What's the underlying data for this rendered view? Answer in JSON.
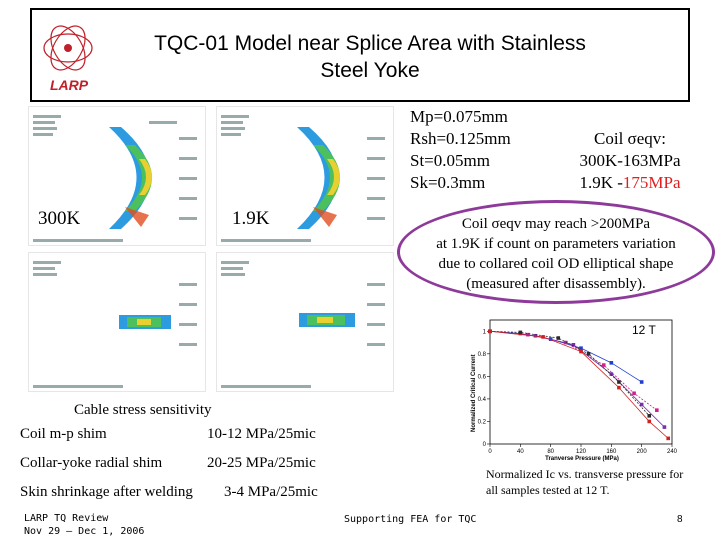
{
  "title": {
    "line1": "TQC-01 Model near Splice Area with Stainless",
    "line2": "Steel Yoke"
  },
  "logo": {
    "text": "LARP"
  },
  "fea_panels": {
    "label_300k": "300K",
    "label_19k": "1.9K"
  },
  "params": {
    "mp": "Mp=0.075mm",
    "rsh": "Rsh=0.125mm",
    "st": "St=0.05mm",
    "sk": "Sk=0.3mm"
  },
  "coil_stats": {
    "line1": "Coil σeqv:",
    "line2": "300K-163MPa",
    "line3_prefix": "1.9K -",
    "line3_value": "175MPa"
  },
  "callout": {
    "line1": "Coil σeqv may reach >200MPa",
    "line2": "at 1.9K if count on parameters variation",
    "line3": "due to collared coil OD elliptical shape",
    "line4": "(measured after disassembly)."
  },
  "plot": {
    "field_label": "12 T",
    "caption": "Normalized Ic vs. transverse pressure for all samples tested at 12 T."
  },
  "chart_data": {
    "type": "scatter",
    "xlabel": "Tranverse Pressure (MPa)",
    "ylabel": "Normalized Critical Current",
    "x_ticks": [
      0,
      40,
      80,
      120,
      160,
      200,
      240
    ],
    "y_ticks": [
      0,
      0.2,
      0.4,
      0.6,
      0.8,
      1
    ],
    "xlim": [
      0,
      240
    ],
    "ylim": [
      0,
      1.1
    ],
    "series": [
      {
        "color": "#1f3fd0",
        "points": [
          [
            0,
            1.0
          ],
          [
            40,
            0.98
          ],
          [
            80,
            0.93
          ],
          [
            120,
            0.85
          ],
          [
            160,
            0.72
          ],
          [
            200,
            0.55
          ]
        ]
      },
      {
        "color": "#d01f8a",
        "points": [
          [
            0,
            1.0
          ],
          [
            50,
            0.97
          ],
          [
            100,
            0.9
          ],
          [
            150,
            0.7
          ],
          [
            190,
            0.45
          ],
          [
            220,
            0.3
          ]
        ]
      },
      {
        "color": "#7a2fb0",
        "points": [
          [
            0,
            1.0
          ],
          [
            60,
            0.96
          ],
          [
            110,
            0.88
          ],
          [
            160,
            0.62
          ],
          [
            200,
            0.35
          ],
          [
            230,
            0.15
          ]
        ]
      },
      {
        "color": "#2a2a2a",
        "points": [
          [
            0,
            1.0
          ],
          [
            40,
            0.99
          ],
          [
            90,
            0.94
          ],
          [
            130,
            0.8
          ],
          [
            170,
            0.55
          ],
          [
            210,
            0.25
          ]
        ]
      },
      {
        "color": "#d02020",
        "points": [
          [
            0,
            1.0
          ],
          [
            70,
            0.95
          ],
          [
            120,
            0.82
          ],
          [
            170,
            0.5
          ],
          [
            210,
            0.2
          ],
          [
            235,
            0.05
          ]
        ]
      }
    ]
  },
  "sensitivity": {
    "heading": "Cable stress sensitivity",
    "rows": [
      {
        "label": "Coil m-p shim",
        "value": "10-12 MPa/25mic"
      },
      {
        "label": "Collar-yoke radial shim",
        "value": "20-25 MPa/25mic"
      },
      {
        "label": "Skin shrinkage after welding",
        "value": "3-4 MPa/25mic"
      }
    ]
  },
  "footer": {
    "left_line1": "LARP TQ Review",
    "left_line2": "Nov 29 – Dec 1, 2006",
    "center": "Supporting FEA for TQC",
    "page": "8"
  }
}
